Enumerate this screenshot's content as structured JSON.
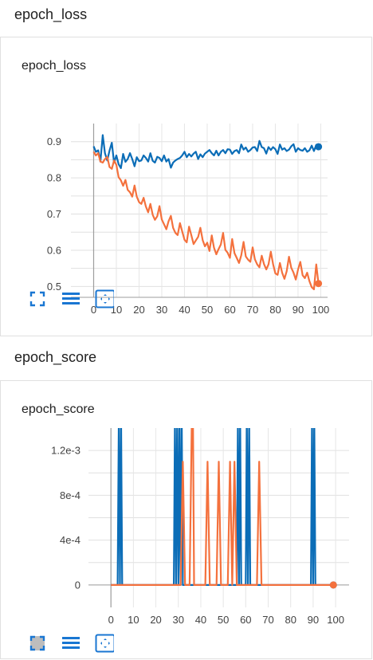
{
  "sections": [
    {
      "heading": "epoch_loss",
      "card_title": "epoch_loss",
      "toolbar": [
        "fullscreen-icon",
        "list-icon",
        "fit-domain-icon"
      ],
      "chart_data": {
        "type": "line",
        "title": "epoch_loss",
        "xlim": [
          -10,
          103
        ],
        "ylim": [
          0.47,
          0.95
        ],
        "xticks": [
          0,
          10,
          20,
          30,
          40,
          50,
          60,
          70,
          80,
          90,
          100
        ],
        "xtick_labels": [
          "0",
          "10",
          "20",
          "30",
          "40",
          "50",
          "60",
          "70",
          "80",
          "90",
          "100"
        ],
        "yticks": [
          0.5,
          0.6,
          0.7,
          0.8,
          0.9
        ],
        "ytick_labels": [
          "0.5",
          "0.6",
          "0.7",
          "0.8",
          "0.9"
        ],
        "grid": true,
        "series": [
          {
            "color": "#0b6db7",
            "x": [
              0,
              1,
              2,
              3,
              4,
              5,
              6,
              7,
              8,
              9,
              10,
              11,
              12,
              13,
              14,
              15,
              16,
              17,
              18,
              19,
              20,
              21,
              22,
              23,
              24,
              25,
              26,
              27,
              28,
              29,
              30,
              31,
              32,
              33,
              34,
              35,
              36,
              37,
              38,
              39,
              40,
              41,
              42,
              43,
              44,
              45,
              46,
              47,
              48,
              49,
              50,
              51,
              52,
              53,
              54,
              55,
              56,
              57,
              58,
              59,
              60,
              61,
              62,
              63,
              64,
              65,
              66,
              67,
              68,
              69,
              70,
              71,
              72,
              73,
              74,
              75,
              76,
              77,
              78,
              79,
              80,
              81,
              82,
              83,
              84,
              85,
              86,
              87,
              88,
              89,
              90,
              91,
              92,
              93,
              94,
              95,
              96,
              97,
              98,
              99
            ],
            "y": [
              0.887,
              0.872,
              0.876,
              0.845,
              0.918,
              0.868,
              0.848,
              0.875,
              0.897,
              0.842,
              0.862,
              0.838,
              0.827,
              0.866,
              0.844,
              0.852,
              0.868,
              0.852,
              0.832,
              0.857,
              0.846,
              0.848,
              0.862,
              0.855,
              0.845,
              0.868,
              0.847,
              0.842,
              0.858,
              0.855,
              0.846,
              0.862,
              0.845,
              0.852,
              0.828,
              0.842,
              0.848,
              0.852,
              0.855,
              0.862,
              0.872,
              0.857,
              0.866,
              0.859,
              0.867,
              0.872,
              0.852,
              0.865,
              0.857,
              0.867,
              0.872,
              0.877,
              0.868,
              0.862,
              0.875,
              0.862,
              0.872,
              0.877,
              0.868,
              0.879,
              0.878,
              0.866,
              0.874,
              0.877,
              0.868,
              0.892,
              0.878,
              0.884,
              0.872,
              0.877,
              0.884,
              0.885,
              0.874,
              0.902,
              0.885,
              0.882,
              0.867,
              0.885,
              0.877,
              0.885,
              0.879,
              0.866,
              0.892,
              0.878,
              0.882,
              0.874,
              0.878,
              0.887,
              0.893,
              0.872,
              0.882,
              0.877,
              0.875,
              0.882,
              0.872,
              0.876,
              0.889,
              0.874,
              0.891,
              0.886
            ]
          },
          {
            "color": "#f4713d",
            "x": [
              0,
              1,
              2,
              3,
              4,
              5,
              6,
              7,
              8,
              9,
              10,
              11,
              12,
              13,
              14,
              15,
              16,
              17,
              18,
              19,
              20,
              21,
              22,
              23,
              24,
              25,
              26,
              27,
              28,
              29,
              30,
              31,
              32,
              33,
              34,
              35,
              36,
              37,
              38,
              39,
              40,
              41,
              42,
              43,
              44,
              45,
              46,
              47,
              48,
              49,
              50,
              51,
              52,
              53,
              54,
              55,
              56,
              57,
              58,
              59,
              60,
              61,
              62,
              63,
              64,
              65,
              66,
              67,
              68,
              69,
              70,
              71,
              72,
              73,
              74,
              75,
              76,
              77,
              78,
              79,
              80,
              81,
              82,
              83,
              84,
              85,
              86,
              87,
              88,
              89,
              90,
              91,
              92,
              93,
              94,
              95,
              96,
              97,
              98,
              99
            ],
            "y": [
              0.872,
              0.862,
              0.868,
              0.845,
              0.842,
              0.852,
              0.858,
              0.83,
              0.825,
              0.848,
              0.836,
              0.802,
              0.793,
              0.778,
              0.794,
              0.767,
              0.76,
              0.748,
              0.779,
              0.748,
              0.733,
              0.728,
              0.745,
              0.721,
              0.705,
              0.728,
              0.698,
              0.684,
              0.694,
              0.722,
              0.685,
              0.672,
              0.658,
              0.68,
              0.695,
              0.662,
              0.648,
              0.642,
              0.675,
              0.652,
              0.629,
              0.622,
              0.665,
              0.642,
              0.617,
              0.627,
              0.637,
              0.662,
              0.628,
              0.611,
              0.621,
              0.598,
              0.641,
              0.607,
              0.589,
              0.603,
              0.616,
              0.648,
              0.601,
              0.593,
              0.579,
              0.631,
              0.592,
              0.579,
              0.565,
              0.586,
              0.623,
              0.583,
              0.574,
              0.568,
              0.608,
              0.575,
              0.561,
              0.553,
              0.585,
              0.562,
              0.547,
              0.561,
              0.596,
              0.562,
              0.536,
              0.532,
              0.565,
              0.538,
              0.521,
              0.542,
              0.582,
              0.552,
              0.538,
              0.519,
              0.547,
              0.568,
              0.531,
              0.523,
              0.538,
              0.515,
              0.498,
              0.492,
              0.561,
              0.508
            ]
          }
        ]
      }
    },
    {
      "heading": "epoch_score",
      "card_title": "epoch_score",
      "toolbar": [
        "fullscreen-icon",
        "list-icon",
        "fit-domain-icon"
      ],
      "chart_data": {
        "type": "line",
        "title": "epoch_score",
        "xlim": [
          -10,
          106
        ],
        "ylim": [
          -0.0002,
          0.0014
        ],
        "xticks": [
          0,
          10,
          20,
          30,
          40,
          50,
          60,
          70,
          80,
          90,
          100
        ],
        "xtick_labels": [
          "0",
          "10",
          "20",
          "30",
          "40",
          "50",
          "60",
          "70",
          "80",
          "90",
          "100"
        ],
        "yticks": [
          0,
          0.0004,
          0.0008,
          0.0012
        ],
        "ytick_labels": [
          "0",
          "4e-4",
          "8e-4",
          "1.2e-3"
        ],
        "grid": true,
        "series": [
          {
            "color": "#0b6db7",
            "x": [
              0,
              1,
              2,
              3,
              3.5,
              4,
              4.5,
              5,
              6,
              28,
              28.5,
              29,
              29.5,
              30,
              30.5,
              31,
              31.5,
              32,
              33,
              56,
              56.5,
              57,
              57.5,
              58,
              60,
              60.5,
              61,
              61.5,
              62,
              89,
              89.5,
              90,
              90.5,
              91,
              99
            ],
            "y": [
              0,
              0,
              0,
              0,
              0.0015,
              0,
              0.0015,
              0,
              0,
              0,
              0.0015,
              0,
              0.0015,
              0,
              0.0015,
              0,
              0.0015,
              0,
              0,
              0,
              0.0015,
              0,
              0.0015,
              0,
              0,
              0.0015,
              0,
              0.0015,
              0,
              0,
              0.0015,
              0,
              0.0015,
              0,
              0
            ]
          },
          {
            "color": "#f4713d",
            "x": [
              0,
              31,
              32,
              33,
              35,
              36,
              36.5,
              37,
              38,
              42,
              43,
              44,
              47,
              48,
              49,
              52,
              53,
              54,
              55,
              56,
              65,
              66,
              67,
              99
            ],
            "y": [
              0,
              0,
              0.0011,
              0,
              0,
              0.0015,
              0.0015,
              0,
              0,
              0,
              0.0011,
              0,
              0,
              0.0011,
              0,
              0,
              0.0011,
              0,
              0.0011,
              0,
              0,
              0.0011,
              0,
              0
            ]
          }
        ]
      }
    }
  ]
}
